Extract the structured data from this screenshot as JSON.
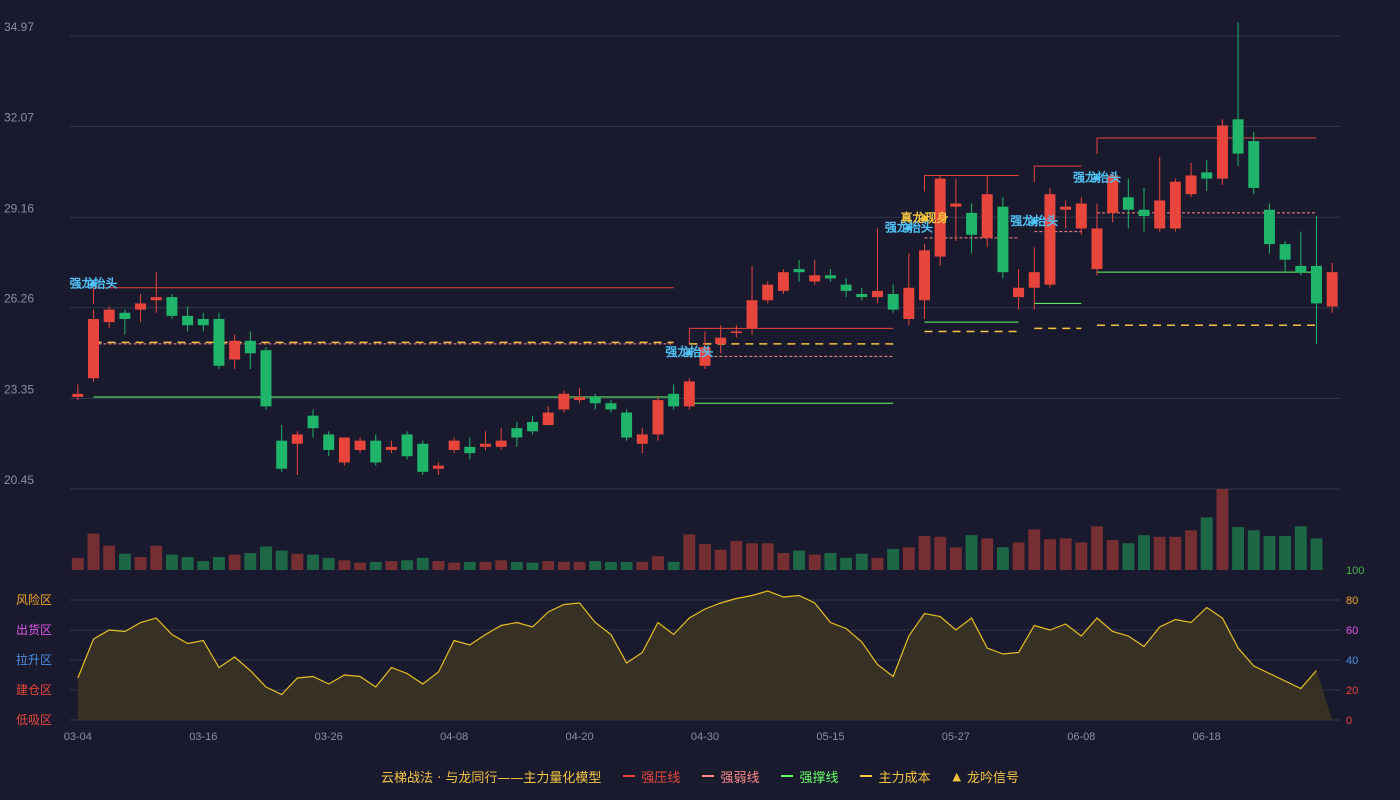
{
  "chart_data": {
    "type": "candlestick",
    "price_axis": {
      "ticks": [
        34.97,
        32.07,
        29.16,
        26.26,
        23.35,
        20.45
      ],
      "ylim": [
        20.45,
        34.97
      ]
    },
    "osc_axis": {
      "ticks": [
        100,
        80,
        60,
        40,
        20,
        0
      ],
      "ylim": [
        0,
        100
      ]
    },
    "zones": [
      "风险区",
      "出货区",
      "拉升区",
      "建仓区",
      "低吸区"
    ],
    "x_ticks": [
      "03-04",
      "03-16",
      "03-26",
      "04-08",
      "04-20",
      "04-30",
      "05-15",
      "05-27",
      "06-08",
      "06-18"
    ],
    "x_tick_index": [
      0,
      8,
      16,
      24,
      32,
      40,
      48,
      56,
      64,
      72
    ],
    "candles": [
      [
        23.4,
        23.5,
        23.3,
        23.8
      ],
      [
        24.0,
        25.9,
        23.9,
        26.2
      ],
      [
        25.8,
        26.2,
        25.6,
        26.3
      ],
      [
        26.1,
        25.9,
        25.4,
        26.2
      ],
      [
        26.2,
        26.4,
        25.8,
        26.7
      ],
      [
        26.5,
        26.6,
        26.1,
        27.4
      ],
      [
        26.6,
        26.0,
        25.9,
        26.7
      ],
      [
        26.0,
        25.7,
        25.5,
        26.3
      ],
      [
        25.9,
        25.7,
        25.5,
        26.1
      ],
      [
        25.9,
        24.4,
        24.3,
        26.1
      ],
      [
        24.6,
        25.2,
        24.3,
        25.4
      ],
      [
        25.2,
        24.8,
        24.3,
        25.5
      ],
      [
        24.9,
        23.1,
        23.0,
        25.0
      ],
      [
        22.0,
        21.1,
        21.0,
        22.5
      ],
      [
        21.9,
        22.2,
        20.9,
        22.3
      ],
      [
        22.8,
        22.4,
        22.1,
        23.0
      ],
      [
        22.2,
        21.7,
        21.5,
        22.3
      ],
      [
        21.3,
        22.1,
        21.2,
        22.1
      ],
      [
        21.7,
        22.0,
        21.6,
        22.1
      ],
      [
        22.0,
        21.3,
        21.2,
        22.2
      ],
      [
        21.7,
        21.8,
        21.6,
        22.0
      ],
      [
        22.2,
        21.5,
        21.4,
        22.3
      ],
      [
        21.9,
        21.0,
        20.9,
        22.0
      ],
      [
        21.1,
        21.2,
        20.9,
        21.3
      ],
      [
        21.7,
        22.0,
        21.6,
        22.1
      ],
      [
        21.8,
        21.6,
        21.4,
        22.1
      ],
      [
        21.8,
        21.9,
        21.7,
        22.3
      ],
      [
        21.8,
        22.0,
        21.7,
        22.4
      ],
      [
        22.4,
        22.1,
        21.8,
        22.6
      ],
      [
        22.6,
        22.3,
        22.2,
        22.8
      ],
      [
        22.5,
        22.9,
        22.5,
        23.1
      ],
      [
        23.0,
        23.5,
        22.9,
        23.6
      ],
      [
        23.3,
        23.4,
        23.2,
        23.7
      ],
      [
        23.4,
        23.2,
        23.0,
        23.5
      ],
      [
        23.2,
        23.0,
        22.9,
        23.3
      ],
      [
        22.9,
        22.1,
        22.0,
        23.0
      ],
      [
        21.9,
        22.2,
        21.6,
        22.4
      ],
      [
        22.2,
        23.3,
        22.0,
        23.4
      ],
      [
        23.5,
        23.1,
        23.0,
        23.8
      ],
      [
        23.1,
        23.9,
        23.0,
        24.0
      ],
      [
        24.4,
        25.0,
        24.3,
        25.5
      ],
      [
        25.1,
        25.3,
        24.8,
        25.7
      ],
      [
        25.5,
        25.5,
        25.3,
        25.7
      ],
      [
        25.6,
        26.5,
        25.4,
        27.6
      ],
      [
        26.5,
        27.0,
        26.4,
        27.1
      ],
      [
        26.8,
        27.4,
        26.7,
        27.5
      ],
      [
        27.5,
        27.4,
        27.1,
        27.8
      ],
      [
        27.1,
        27.3,
        27.0,
        27.8
      ],
      [
        27.3,
        27.2,
        27.1,
        27.5
      ],
      [
        27.0,
        26.8,
        26.6,
        27.2
      ],
      [
        26.7,
        26.6,
        26.5,
        26.9
      ],
      [
        26.6,
        26.8,
        26.4,
        28.8
      ],
      [
        26.7,
        26.2,
        26.1,
        27.0
      ],
      [
        25.9,
        26.9,
        25.7,
        28.0
      ],
      [
        26.5,
        28.1,
        25.9,
        28.3
      ],
      [
        27.9,
        30.4,
        27.6,
        30.5
      ],
      [
        29.5,
        29.6,
        28.4,
        30.4
      ],
      [
        29.3,
        28.6,
        28.0,
        29.6
      ],
      [
        28.5,
        29.9,
        28.2,
        30.5
      ],
      [
        29.5,
        27.4,
        27.2,
        29.8
      ],
      [
        26.6,
        26.9,
        26.2,
        27.5
      ],
      [
        26.9,
        27.4,
        26.2,
        28.2
      ],
      [
        27.0,
        29.9,
        26.9,
        30.1
      ],
      [
        29.4,
        29.5,
        28.8,
        29.7
      ],
      [
        28.8,
        29.6,
        28.6,
        29.8
      ],
      [
        27.5,
        28.8,
        27.3,
        29.6
      ],
      [
        29.3,
        30.5,
        29.0,
        30.6
      ],
      [
        29.8,
        29.4,
        28.8,
        30.4
      ],
      [
        29.4,
        29.2,
        28.7,
        30.1
      ],
      [
        28.8,
        29.7,
        28.7,
        31.1
      ],
      [
        28.8,
        30.3,
        28.7,
        30.4
      ],
      [
        29.9,
        30.5,
        29.8,
        30.9
      ],
      [
        30.6,
        30.4,
        30.0,
        31.0
      ],
      [
        30.4,
        32.1,
        30.2,
        32.3
      ],
      [
        32.3,
        31.2,
        30.8,
        35.4
      ],
      [
        31.6,
        30.1,
        29.9,
        31.9
      ],
      [
        29.4,
        28.3,
        28.0,
        29.6
      ],
      [
        28.3,
        27.8,
        27.4,
        28.4
      ],
      [
        27.6,
        27.4,
        27.3,
        28.7
      ],
      [
        27.6,
        26.4,
        25.1,
        29.2
      ],
      [
        26.3,
        27.4,
        26.1,
        27.7
      ]
    ],
    "volume": [
      15,
      45,
      30,
      20,
      16,
      30,
      19,
      16,
      11,
      16,
      19,
      21,
      29,
      24,
      20,
      19,
      15,
      12,
      9,
      10,
      11,
      12,
      15,
      11,
      9,
      10,
      10,
      12,
      10,
      9,
      11,
      10,
      10,
      11,
      10,
      10,
      10,
      17,
      10,
      44,
      32,
      25,
      36,
      33,
      33,
      21,
      24,
      19,
      21,
      15,
      20,
      15,
      26,
      28,
      42,
      41,
      28,
      43,
      39,
      28,
      34,
      50,
      38,
      39,
      34,
      54,
      37,
      33,
      43,
      41,
      41,
      49,
      65,
      100,
      53,
      49,
      42,
      42,
      54,
      39
    ],
    "oscillator": [
      28,
      54,
      60,
      59,
      65,
      68,
      57,
      51,
      53,
      35,
      42,
      33,
      22,
      17,
      28,
      29,
      24,
      30,
      29,
      22,
      35,
      31,
      24,
      32,
      53,
      50,
      57,
      63,
      65,
      62,
      72,
      77,
      78,
      65,
      57,
      38,
      45,
      65,
      57,
      68,
      74,
      78,
      81,
      83,
      86,
      82,
      83,
      78,
      65,
      61,
      52,
      37,
      29,
      56,
      71,
      69,
      60,
      68,
      48,
      44,
      45,
      63,
      60,
      64,
      56,
      68,
      59,
      56,
      49,
      62,
      67,
      65,
      75,
      68,
      48,
      36,
      31,
      26,
      21,
      33
    ],
    "signals": [
      {
        "index": 1,
        "label": "强龙抬头",
        "color": "#4fc3f7"
      },
      {
        "index": 39,
        "label": "强龙抬头",
        "color": "#4fc3f7"
      },
      {
        "index": 54,
        "label": "真龙现身",
        "color": "#f5c542"
      },
      {
        "index": 53,
        "label": "强龙抬头",
        "color": "#4fc3f7"
      },
      {
        "index": 61,
        "label": "强龙抬头",
        "color": "#4fc3f7"
      },
      {
        "index": 65,
        "label": "强龙抬头",
        "color": "#4fc3f7"
      }
    ],
    "lines": [
      {
        "kind": "press",
        "i0": 1,
        "i1": 38,
        "y": 26.9
      },
      {
        "kind": "weak",
        "i0": 1,
        "i1": 38,
        "y": 25.1
      },
      {
        "kind": "support",
        "i0": 1,
        "i1": 38,
        "y": 23.4
      },
      {
        "kind": "cost",
        "i0": 1,
        "i1": 38,
        "y": 25.15
      },
      {
        "kind": "press",
        "i0": 39,
        "i1": 52,
        "y": 25.6
      },
      {
        "kind": "weak",
        "i0": 39,
        "i1": 52,
        "y": 24.7
      },
      {
        "kind": "support",
        "i0": 39,
        "i1": 52,
        "y": 23.2
      },
      {
        "kind": "cost",
        "i0": 39,
        "i1": 52,
        "y": 25.1
      },
      {
        "kind": "press",
        "i0": 54,
        "i1": 60,
        "y": 30.5
      },
      {
        "kind": "weak",
        "i0": 54,
        "i1": 60,
        "y": 28.5
      },
      {
        "kind": "support",
        "i0": 54,
        "i1": 60,
        "y": 25.8
      },
      {
        "kind": "cost",
        "i0": 54,
        "i1": 60,
        "y": 25.5
      },
      {
        "kind": "press",
        "i0": 61,
        "i1": 64,
        "y": 30.8
      },
      {
        "kind": "weak",
        "i0": 61,
        "i1": 64,
        "y": 28.7
      },
      {
        "kind": "support",
        "i0": 61,
        "i1": 64,
        "y": 26.4
      },
      {
        "kind": "cost",
        "i0": 61,
        "i1": 64,
        "y": 25.6
      },
      {
        "kind": "press",
        "i0": 65,
        "i1": 79,
        "y": 31.7
      },
      {
        "kind": "weak",
        "i0": 65,
        "i1": 79,
        "y": 29.3
      },
      {
        "kind": "support",
        "i0": 65,
        "i1": 79,
        "y": 27.4
      },
      {
        "kind": "cost",
        "i0": 65,
        "i1": 79,
        "y": 25.7
      }
    ],
    "colors": {
      "up": "#e8453c",
      "down": "#1fb56a",
      "grid": "#33364a",
      "axis_text": "#8a8fa3",
      "press": "#e8453c",
      "weak": "#ff8a8a",
      "support": "#66ff66",
      "cost": "#f5c542",
      "osc_line": "#e6c020",
      "zone_risk": "#f5a623",
      "zone_ship": "#e056e8",
      "zone_lift": "#4a90e2",
      "zone_build": "#e8453c",
      "zone_low": "#e8453c"
    }
  },
  "legend": {
    "title": "云梯战法 · 与龙同行——主力量化模型",
    "items": [
      {
        "label": "强压线",
        "color": "#e8453c",
        "style": "solid"
      },
      {
        "label": "强弱线",
        "color": "#ff8a8a",
        "style": "dashed"
      },
      {
        "label": "强撑线",
        "color": "#66ff66",
        "style": "solid"
      },
      {
        "label": "主力成本",
        "color": "#f5c542",
        "style": "dashed"
      },
      {
        "label": "龙吟信号",
        "color": "#f5c542",
        "style": "triangle"
      }
    ]
  }
}
